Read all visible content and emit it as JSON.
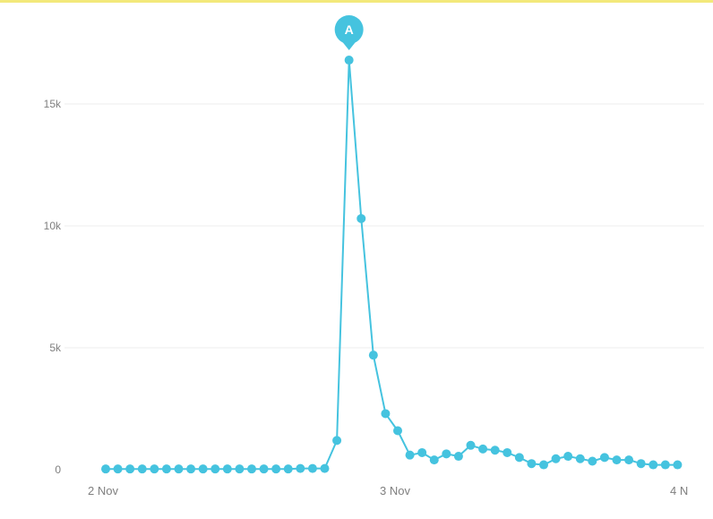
{
  "chart_data": {
    "type": "line",
    "title": "",
    "xlabel": "",
    "ylabel": "",
    "x_ticks": [
      "2 Nov",
      "3 Nov",
      "4 N"
    ],
    "y_ticks": [
      "0",
      "5k",
      "10k",
      "15k"
    ],
    "ylim": [
      0,
      17500
    ],
    "xlim": [
      "2 Nov 00:00",
      "4 Nov 00:00"
    ],
    "grid": true,
    "legend": "none",
    "series": [
      {
        "x_hours": [
          0,
          1,
          2,
          3,
          4,
          5,
          6,
          7,
          8,
          9,
          10,
          11,
          12,
          13,
          14,
          15,
          16,
          17,
          18,
          19,
          20,
          21,
          22,
          23,
          24,
          25,
          26,
          27,
          28,
          29,
          30,
          31,
          32,
          33,
          34,
          35,
          36,
          37,
          38,
          39,
          40,
          41,
          42,
          43,
          44,
          45,
          46,
          47
        ],
        "x_note": "hourly points starting 2 Nov 00:00",
        "values": [
          30,
          30,
          30,
          30,
          30,
          30,
          30,
          30,
          30,
          30,
          30,
          30,
          30,
          30,
          30,
          30,
          50,
          50,
          50,
          1200,
          16800,
          10300,
          4700,
          2300,
          1600,
          600,
          700,
          400,
          650,
          550,
          1000,
          850,
          800,
          700,
          500,
          250,
          200,
          450,
          550,
          450,
          350,
          500,
          400,
          400,
          250,
          200,
          200,
          200
        ]
      }
    ],
    "annotations": [
      {
        "label": "A",
        "at_index": 20
      }
    ],
    "colors": {
      "line": "#45c3df",
      "marker": "#45c3df",
      "annotation_pin": "#45c3df",
      "annotation_text": "#ffffff",
      "grid": "#eeeeee",
      "axis_text": "#7f7f7f",
      "top_border": "#f3e97a"
    }
  }
}
